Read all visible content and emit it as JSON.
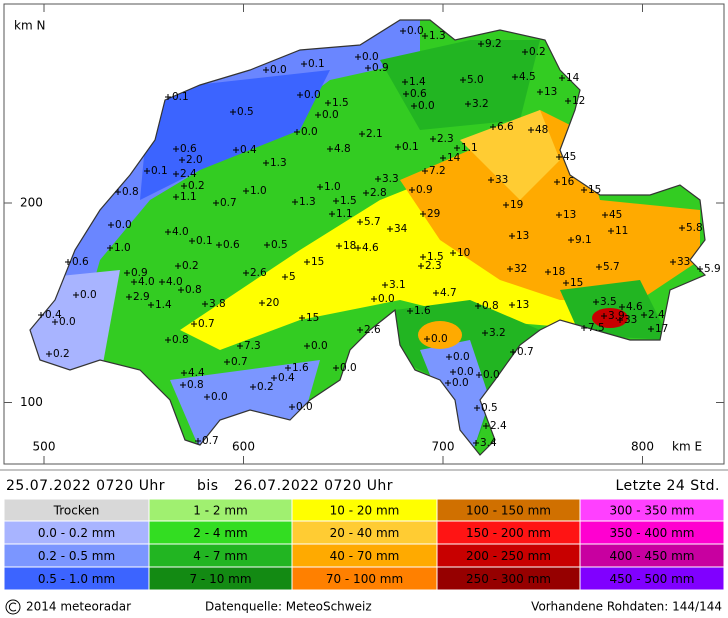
{
  "map": {
    "y_axis_label": "km N",
    "x_axis_label": "km E",
    "xticks": [
      500,
      600,
      700,
      800
    ],
    "yticks": [
      200,
      100
    ],
    "stations": [
      "0.0",
      "1.3",
      "9.2",
      "0.2",
      "0.0",
      "0.9",
      "0.1",
      "0.0",
      "0.1",
      "1.4",
      "5.0",
      "4.5",
      "14",
      "13",
      "12",
      "0.6",
      "0.0",
      "3.2",
      "0.0",
      "1.5",
      "0.0",
      "0.5",
      "6.6",
      "48",
      "0.0",
      "2.1",
      "2.3",
      "0.6",
      "0.4",
      "4.8",
      "0.1",
      "1.1",
      "2.0",
      "1.3",
      "14",
      "45",
      "0.1",
      "2.4",
      "7.2",
      "33",
      "0.2",
      "3.3",
      "0.8",
      "1.1",
      "1.0",
      "1.0",
      "2.8",
      "0.9",
      "16",
      "15",
      "0.7",
      "1.3",
      "1.5",
      "19",
      "1.1",
      "29",
      "13",
      "45",
      "0.0",
      "5.7",
      "34",
      "11",
      "5.8",
      "4.0",
      "13",
      "9.1",
      "1.0",
      "0.1",
      "0.6",
      "0.5",
      "18",
      "4.6",
      "10",
      "1.5",
      "0.6",
      "0.2",
      "2.6",
      "15",
      "2.3",
      "0.9",
      "5",
      "32",
      "18",
      "5.7",
      "33",
      "5.9",
      "4.0",
      "4.0",
      "3.1",
      "15",
      "0.0",
      "0.8",
      "4.7",
      "2.9",
      "20",
      "0.0",
      "3.5",
      "4.6",
      "1.4",
      "3.8",
      "0.8",
      "13",
      "0.4",
      "0.0",
      "1.6",
      "3.9",
      "33",
      "2.4",
      "15",
      "0.7",
      "2.6",
      "7.5",
      "17",
      "3.2",
      "0.8",
      "0.0",
      "7.3",
      "0.0",
      "0.7",
      "0.2",
      "0.7",
      "0.0",
      "4.4",
      "1.6",
      "0.0",
      "0.0",
      "0.4",
      "0.0",
      "0.8",
      "0.2",
      "0.0",
      "0.0",
      "0.0",
      "0.5",
      "2.4",
      "0.7",
      "3.4"
    ]
  },
  "period": {
    "start": "25.07.2022 0720 Uhr",
    "separator": "bis",
    "end": "26.07.2022 0720 Uhr",
    "window": "Letzte 24 Std."
  },
  "legend": {
    "columns": [
      [
        {
          "label": "Trocken",
          "color": "#d8d8d8"
        },
        {
          "label": "0.0 - 0.2 mm",
          "color": "#a8b4ff"
        },
        {
          "label": "0.2 - 0.5 mm",
          "color": "#7b96ff"
        },
        {
          "label": "0.5 - 1.0 mm",
          "color": "#3c64ff"
        }
      ],
      [
        {
          "label": "1 - 2 mm",
          "color": "#a0f070"
        },
        {
          "label": "2 - 4 mm",
          "color": "#33dd22"
        },
        {
          "label": "4 - 7 mm",
          "color": "#22b522"
        },
        {
          "label": "7 - 10 mm",
          "color": "#138a13"
        }
      ],
      [
        {
          "label": "10 - 20 mm",
          "color": "#ffff00"
        },
        {
          "label": "20 - 40 mm",
          "color": "#ffcc33"
        },
        {
          "label": "40 - 70 mm",
          "color": "#ffaa00"
        },
        {
          "label": "70 - 100 mm",
          "color": "#ff8000"
        }
      ],
      [
        {
          "label": "100 - 150 mm",
          "color": "#d07000"
        },
        {
          "label": "150 - 200 mm",
          "color": "#ff1414"
        },
        {
          "label": "200 - 250 mm",
          "color": "#c80000"
        },
        {
          "label": "250 - 300 mm",
          "color": "#960000"
        }
      ],
      [
        {
          "label": "300 - 350 mm",
          "color": "#ff40ff"
        },
        {
          "label": "350 - 400 mm",
          "color": "#ff00d0"
        },
        {
          "label": "400 - 450 mm",
          "color": "#c800a0"
        },
        {
          "label": "450 - 500 mm",
          "color": "#8000ff"
        }
      ]
    ]
  },
  "footer": {
    "copyright": "2014 meteoradar",
    "source": "Datenquelle: MeteoSchweiz",
    "raw_data": "Vorhandene Rohdaten: 144/144"
  }
}
